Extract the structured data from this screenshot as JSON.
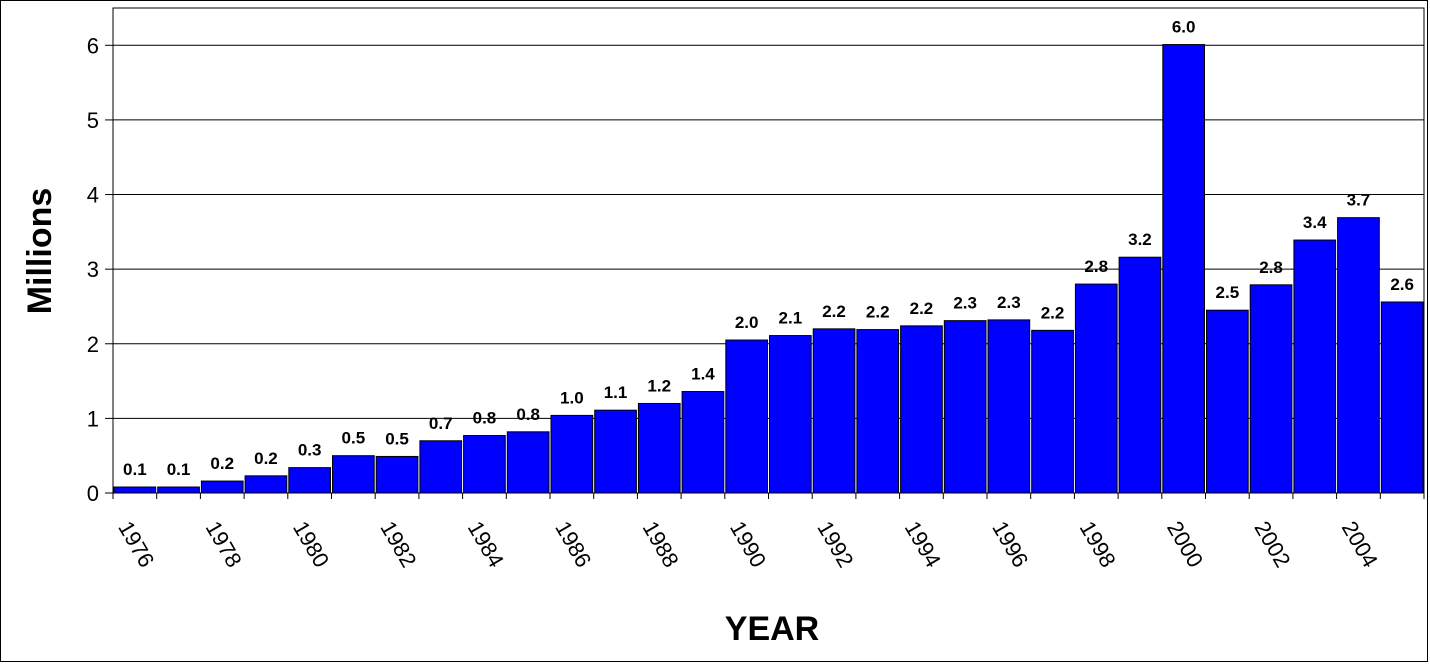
{
  "chart_data": {
    "type": "bar",
    "title": "",
    "xlabel": "YEAR",
    "ylabel": "Millions",
    "ylim": [
      0,
      6.5
    ],
    "yticks": [
      "0",
      "1",
      "2",
      "3",
      "4",
      "5",
      "6"
    ],
    "grid": true,
    "legend": "none",
    "bar_color": "#0000FF",
    "categories": [
      "1976",
      "1977",
      "1978",
      "1979",
      "1980",
      "1981",
      "1982",
      "1983",
      "1984",
      "1985",
      "1986",
      "1987",
      "1988",
      "1989",
      "1990",
      "1991",
      "1992",
      "1993",
      "1994",
      "1995",
      "1996",
      "1997",
      "1998",
      "1999",
      "2000",
      "2001",
      "2002",
      "2003",
      "2004",
      "2005"
    ],
    "x_tick_labels": [
      "1976",
      "",
      "1978",
      "",
      "1980",
      "",
      "1982",
      "",
      "1984",
      "",
      "1986",
      "",
      "1988",
      "",
      "1990",
      "",
      "1992",
      "",
      "1994",
      "",
      "1996",
      "",
      "1998",
      "",
      "2000",
      "",
      "2002",
      "",
      "2004",
      ""
    ],
    "values": [
      0.08,
      0.08,
      0.16,
      0.23,
      0.34,
      0.5,
      0.49,
      0.7,
      0.77,
      0.82,
      1.04,
      1.11,
      1.2,
      1.36,
      2.05,
      2.11,
      2.2,
      2.19,
      2.24,
      2.31,
      2.32,
      2.18,
      2.8,
      3.16,
      6.01,
      2.45,
      2.79,
      3.39,
      3.69,
      2.56
    ],
    "data_labels": [
      "0.1",
      "0.1",
      "0.2",
      "0.2",
      "0.3",
      "0.5",
      "0.5",
      "0.7",
      "0.8",
      "0.8",
      "1.0",
      "1.1",
      "1.2",
      "1.4",
      "2.0",
      "2.1",
      "2.2",
      "2.2",
      "2.2",
      "2.3",
      "2.3",
      "2.2",
      "2.8",
      "3.2",
      "6.0",
      "2.5",
      "2.8",
      "3.4",
      "3.7",
      "2.6"
    ]
  }
}
